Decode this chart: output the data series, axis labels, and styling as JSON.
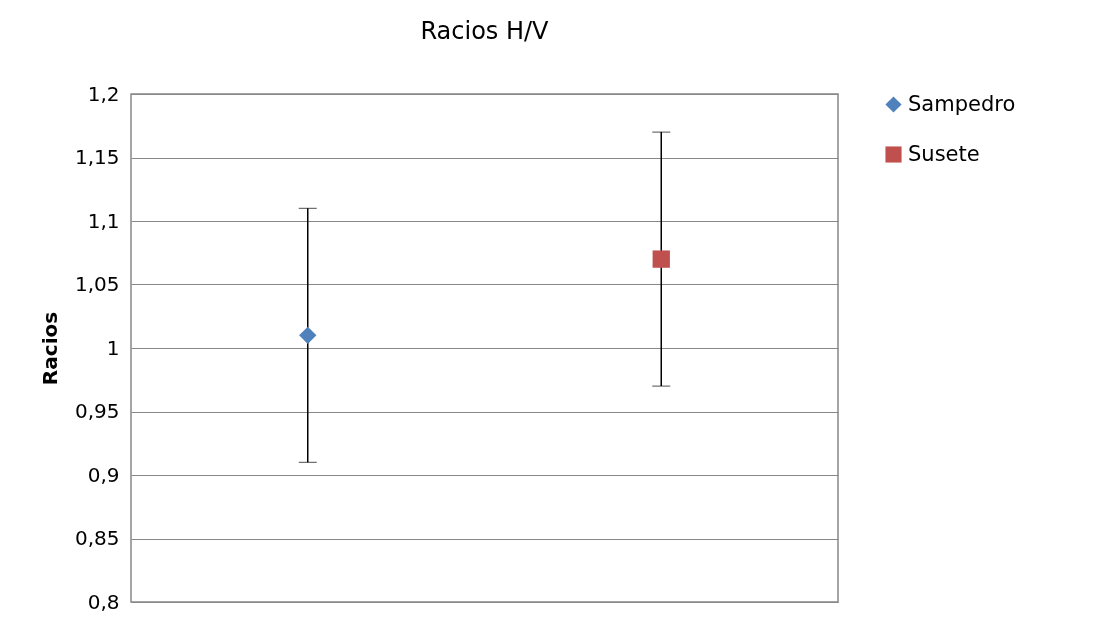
{
  "chart_data": {
    "type": "scatter",
    "title": "Racios H/V",
    "ylabel": "Racios",
    "categories": [
      null,
      null
    ],
    "ylim": [
      0.8,
      1.2
    ],
    "yticks": [
      {
        "value": 0.8,
        "label": "0,8"
      },
      {
        "value": 0.85,
        "label": "0,85"
      },
      {
        "value": 0.9,
        "label": "0,9"
      },
      {
        "value": 0.95,
        "label": "0,95"
      },
      1,
      {
        "value": 1.05,
        "label": "1,05"
      },
      {
        "value": 1.1,
        "label": "1,1"
      },
      {
        "value": 1.15,
        "label": "1,15"
      },
      {
        "value": 1.2,
        "label": "1,2"
      }
    ],
    "tick_labels": "y",
    "grid": "y",
    "legend": "right",
    "series": [
      {
        "name": "Sampedro",
        "color": "#4f81bd",
        "marker": "diamond",
        "values": [
          1.01,
          null
        ],
        "errors": [
          0.1,
          null
        ]
      },
      {
        "name": "Susete",
        "color": "#c0504d",
        "marker": "square",
        "values": [
          null,
          1.07
        ],
        "errors": [
          null,
          0.1
        ]
      }
    ]
  }
}
